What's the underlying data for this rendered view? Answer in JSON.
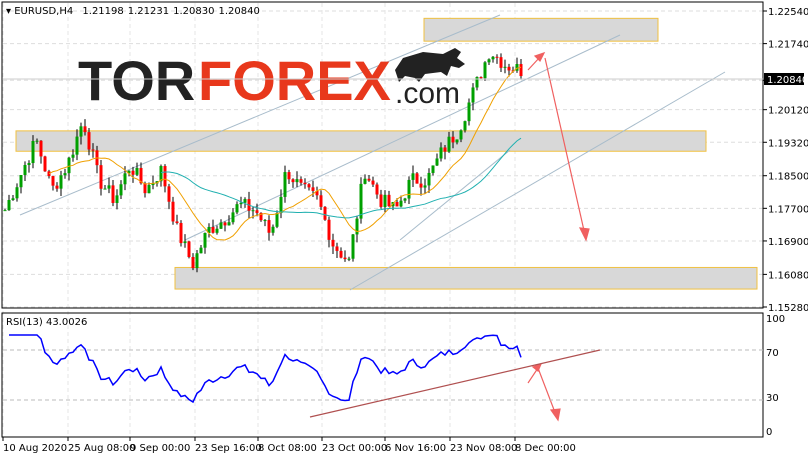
{
  "header": {
    "symbol": "EURUSD,H4",
    "open": "1.21198",
    "high": "1.21231",
    "low": "1.20830",
    "close": "1.20840"
  },
  "logo": {
    "text_dark": "TOR",
    "text_red": "FOREX",
    "suffix": ".com"
  },
  "colors": {
    "bull_candle": "#00a000",
    "bear_candle": "#ff0000",
    "wick": "#000000",
    "ma_fast": "#f0a000",
    "ma_slow": "#20b0b0",
    "rsi": "#0000ff",
    "zone_fill": "#d8d8d8",
    "zone_border": "#f0c040",
    "arrow": "#f06060",
    "rsi_trend": "#b05050",
    "channel": "#a0b8c8"
  },
  "chart_data": [
    {
      "type": "candlestick",
      "title": "EURUSD,H4",
      "yticks": [
        "1.22540",
        "1.21740",
        "1.20840",
        "1.20120",
        "1.19320",
        "1.18500",
        "1.17700",
        "1.16900",
        "1.16080",
        "1.15280"
      ],
      "ylim": [
        1.1528,
        1.2254
      ],
      "current_price": "1.20840",
      "xticks": [
        "10 Aug 2020",
        "25 Aug 08:00",
        "9 Sep 00:00",
        "23 Sep 16:00",
        "8 Oct 08:00",
        "23 Oct 00:00",
        "6 Nov 16:00",
        "23 Nov 08:00",
        "8 Dec 00:00"
      ],
      "close_path_approx": [
        1.1766,
        1.1852,
        1.1938,
        1.1815,
        1.1877,
        1.1987,
        1.184,
        1.1791,
        1.1877,
        1.1815,
        1.1864,
        1.1717,
        1.1632,
        1.1717,
        1.1742,
        1.1779,
        1.1766,
        1.1705,
        1.1864,
        1.1815,
        1.1791,
        1.1681,
        1.1639,
        1.1864,
        1.1791,
        1.1766,
        1.184,
        1.184,
        1.1913,
        1.1962,
        1.206,
        1.2158,
        1.2122,
        1.2109
      ],
      "zones": [
        {
          "top": 1.2236,
          "bottom": 1.218
        },
        {
          "top": 1.196,
          "bottom": 1.191
        },
        {
          "top": 1.1625,
          "bottom": 1.1572
        }
      ],
      "grid": true
    },
    {
      "type": "line",
      "title": "RSI(13) 43.0026",
      "ylim": [
        0,
        100
      ],
      "yticks": [
        "100",
        "70",
        "30",
        "0"
      ],
      "levels": [
        70,
        30
      ]
    }
  ]
}
